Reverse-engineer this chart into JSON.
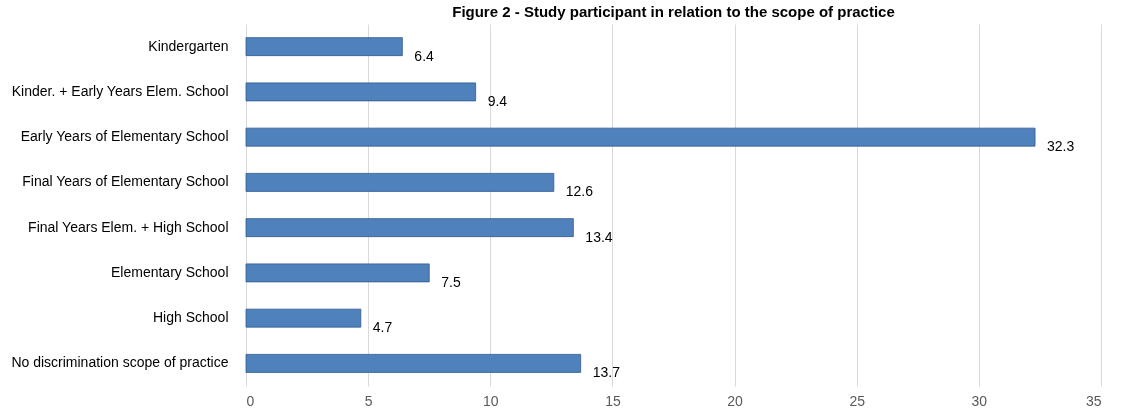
{
  "chart_data": {
    "type": "bar",
    "orientation": "horizontal",
    "title": "Figure 2 - Study participant in relation to the scope of practice",
    "categories": [
      "Kindergarten",
      "Kinder. + Early Years Elem. School",
      "Early Years of Elementary School",
      "Final Years of Elementary School",
      "Final Years Elem. + High School",
      "Elementary School",
      "High School",
      "No discrimination scope of practice"
    ],
    "values": [
      6.4,
      9.4,
      32.3,
      12.6,
      13.4,
      7.5,
      4.7,
      13.7
    ],
    "color": "#4f81bd",
    "xlim": [
      0,
      35
    ],
    "xticks": [
      0,
      5,
      10,
      15,
      20,
      25,
      30,
      35
    ],
    "grid": "x",
    "data_labels": true
  }
}
